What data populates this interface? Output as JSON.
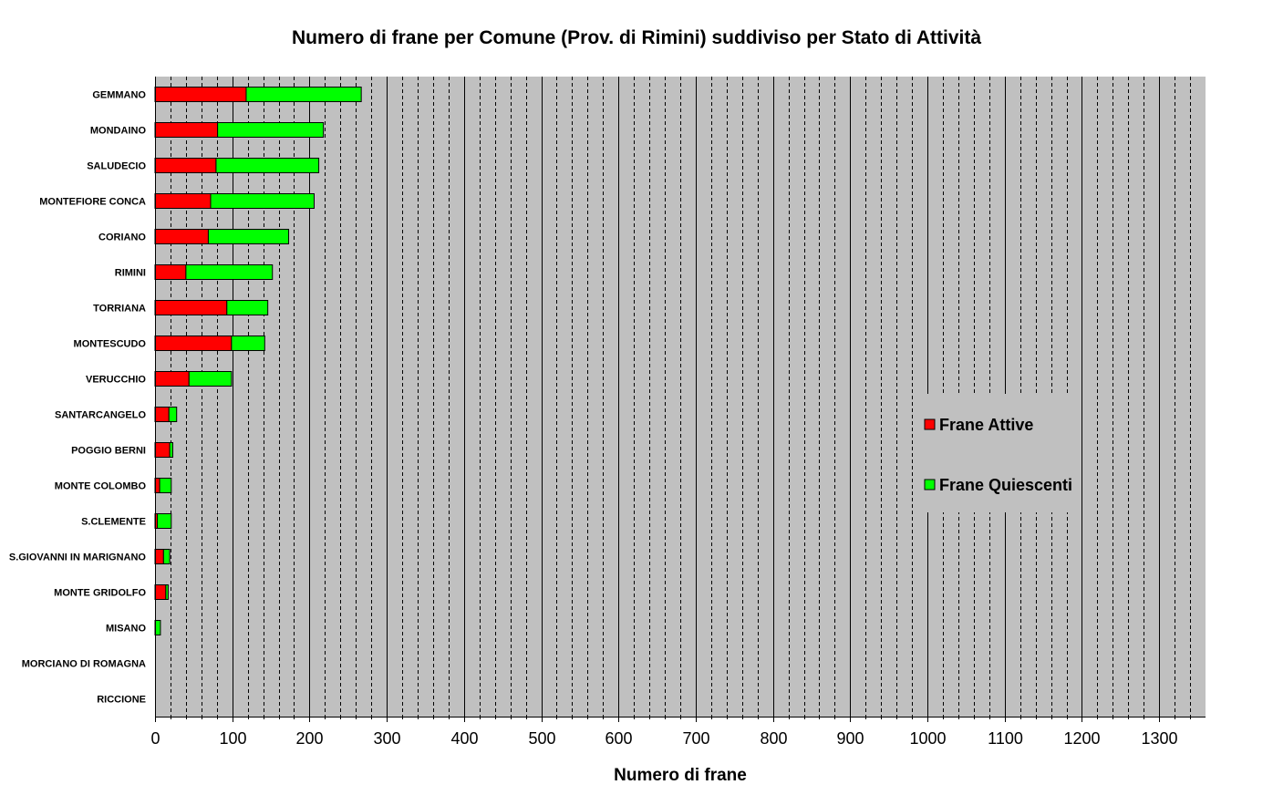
{
  "chart_data": {
    "type": "bar",
    "orientation": "horizontal",
    "stacked": true,
    "title": "Numero di frane per Comune (Prov. di Rimini) suddiviso per Stato di Attività",
    "xlabel": "Numero di frane",
    "ylabel": "",
    "xlim": [
      0,
      1360
    ],
    "x_major_ticks": [
      0,
      100,
      200,
      300,
      400,
      500,
      600,
      700,
      800,
      900,
      1000,
      1100,
      1200,
      1300
    ],
    "x_minor_step": 20,
    "grid": true,
    "legend_position": "right",
    "categories": [
      "GEMMANO",
      "MONDAINO",
      "SALUDECIO",
      "MONTEFIORE CONCA",
      "CORIANO",
      "RIMINI",
      "TORRIANA",
      "MONTESCUDO",
      "VERUCCHIO",
      "SANTARCANGELO",
      "POGGIO BERNI",
      "MONTE COLOMBO",
      "S.CLEMENTE",
      "S.GIOVANNI IN MARIGNANO",
      "MONTE GRIDOLFO",
      "MISANO",
      "MORCIANO DI ROMAGNA",
      "RICCIONE"
    ],
    "series": [
      {
        "name": "Frane Attive",
        "color": "#ff0000",
        "values": [
          118,
          81,
          79,
          72,
          69,
          40,
          93,
          99,
          44,
          18,
          19,
          6,
          3,
          11,
          14,
          0,
          0,
          0
        ]
      },
      {
        "name": "Frane Quiescenti",
        "color": "#00ff00",
        "values": [
          149,
          137,
          133,
          134,
          104,
          112,
          53,
          43,
          55,
          10,
          4,
          15,
          18,
          8,
          3,
          7,
          0,
          0
        ]
      }
    ]
  },
  "colors": {
    "plot_background": "#c0c0c0",
    "grid_major": "#000000",
    "grid_minor": "#000000"
  }
}
